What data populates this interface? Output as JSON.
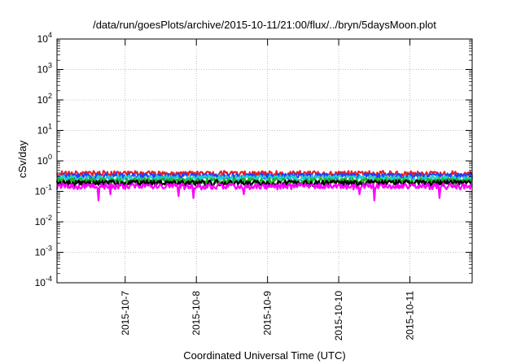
{
  "chart_data": {
    "type": "line",
    "title": "/data/run/goesPlots/archive/2015-10-11/21:00/flux/../bryn/5daysMoon.plot",
    "xlabel": "Coordinated Universal Time (UTC)",
    "ylabel": "cSv/day",
    "yscale": "log",
    "ylim": [
      0.0001,
      10000
    ],
    "xlim": [
      "2015-10-06 01:00",
      "2015-10-11 21:00"
    ],
    "grid": true,
    "legend": "none",
    "y_ticks": [
      {
        "value": 0.0001,
        "base": "10",
        "exp": "-4"
      },
      {
        "value": 0.001,
        "base": "10",
        "exp": "-3"
      },
      {
        "value": 0.01,
        "base": "10",
        "exp": "-2"
      },
      {
        "value": 0.1,
        "base": "10",
        "exp": "-1"
      },
      {
        "value": 1,
        "base": "10",
        "exp": "0"
      },
      {
        "value": 10,
        "base": "10",
        "exp": "1"
      },
      {
        "value": 100,
        "base": "10",
        "exp": "2"
      },
      {
        "value": 1000,
        "base": "10",
        "exp": "3"
      },
      {
        "value": 10000,
        "base": "10",
        "exp": "4"
      }
    ],
    "x_ticks": [
      {
        "value": "2015-10-07 00:00",
        "label": "2015-10-7"
      },
      {
        "value": "2015-10-08 00:00",
        "label": "2015-10-8"
      },
      {
        "value": "2015-10-09 00:00",
        "label": "2015-10-9"
      },
      {
        "value": "2015-10-10 00:00",
        "label": "2015-10-10"
      },
      {
        "value": "2015-10-11 00:00",
        "label": "2015-10-11"
      }
    ],
    "series": [
      {
        "color": "#e0202a",
        "base": 0.38
      },
      {
        "color": "#2040ff",
        "base": 0.32
      },
      {
        "color": "#20d0d0",
        "base": 0.27
      },
      {
        "color": "#20b020",
        "base": 0.22
      },
      {
        "color": "#000000",
        "base": 0.19
      },
      {
        "color": "#ff00ff",
        "base": 0.15
      }
    ],
    "dips": [
      {
        "date": "2015-10-06 15:00",
        "value": 0.05
      },
      {
        "date": "2015-10-06 19:00",
        "value": 0.08
      },
      {
        "date": "2015-10-07 18:00",
        "value": 0.07
      },
      {
        "date": "2015-10-07 23:00",
        "value": 0.06
      },
      {
        "date": "2015-10-08 16:00",
        "value": 0.08
      },
      {
        "date": "2015-10-10 07:00",
        "value": 0.08
      },
      {
        "date": "2015-10-10 12:00",
        "value": 0.05
      },
      {
        "date": "2015-10-11 10:00",
        "value": 0.06
      }
    ]
  }
}
